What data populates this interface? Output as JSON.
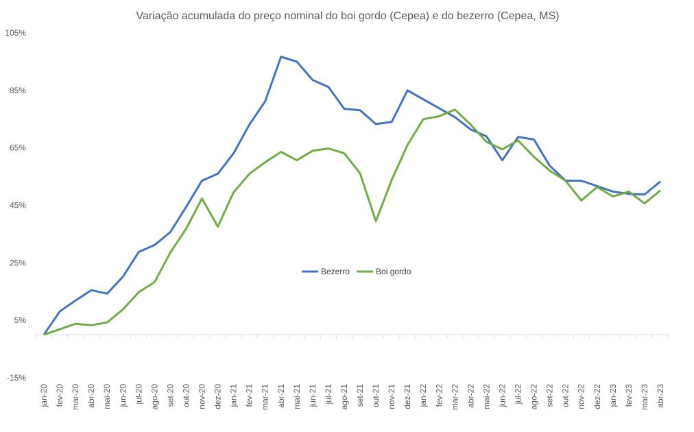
{
  "chart_data": {
    "type": "line",
    "title": "Variação acumulada do preço nominal do boi gordo (Cepea) e do bezerro (Cepea, MS)",
    "xlabel": "",
    "ylabel": "",
    "ylim": [
      -15,
      105
    ],
    "yticks": [
      -15,
      5,
      25,
      45,
      65,
      85,
      105
    ],
    "ytick_labels": [
      "-15%",
      "5%",
      "25%",
      "45%",
      "65%",
      "85%",
      "105%"
    ],
    "grid": false,
    "legend_position": "center",
    "categories": [
      "jan-20",
      "fev-20",
      "mar-20",
      "abr-20",
      "mai-20",
      "jun-20",
      "jul-20",
      "ago-20",
      "set-20",
      "out-20",
      "nov-20",
      "dez-20",
      "jan-21",
      "fev-21",
      "mar-21",
      "abr-21",
      "mai-21",
      "jun-21",
      "jul-21",
      "ago-21",
      "set-21",
      "out-21",
      "nov-21",
      "dez-21",
      "jan-22",
      "fev-22",
      "mar-22",
      "abr-22",
      "mai-22",
      "jun-22",
      "jul-22",
      "ago-22",
      "set-22",
      "out-22",
      "nov-22",
      "dez-22",
      "jan-23",
      "fev-23",
      "mar-23",
      "abr-23"
    ],
    "series": [
      {
        "name": "Bezerro",
        "color": "#4472C4",
        "values": [
          0,
          8.1,
          11.9,
          15.5,
          14.3,
          20.2,
          28.8,
          31.2,
          35.7,
          44.5,
          53.6,
          56,
          63.1,
          73.1,
          81.2,
          96.7,
          95,
          88.6,
          86.2,
          78.6,
          78.1,
          73.3,
          74,
          85,
          81.9,
          78.8,
          75.7,
          71.4,
          69,
          60.7,
          68.8,
          67.9,
          58.8,
          53.6,
          53.6,
          51.7,
          49.8,
          49,
          48.8,
          53.3
        ]
      },
      {
        "name": "Boi gordo",
        "color": "#70AD47",
        "values": [
          0,
          1.9,
          3.8,
          3.3,
          4.3,
          8.8,
          14.8,
          18.3,
          28.6,
          36.9,
          47.4,
          37.6,
          49.5,
          56,
          60,
          63.6,
          60.7,
          64,
          64.8,
          63.1,
          56.2,
          39.5,
          53.8,
          66,
          75,
          76,
          78.3,
          73.1,
          67.1,
          64.5,
          67.6,
          61.9,
          57.1,
          53.6,
          46.7,
          51.4,
          48.1,
          49.8,
          45.7,
          50.2
        ]
      }
    ]
  }
}
